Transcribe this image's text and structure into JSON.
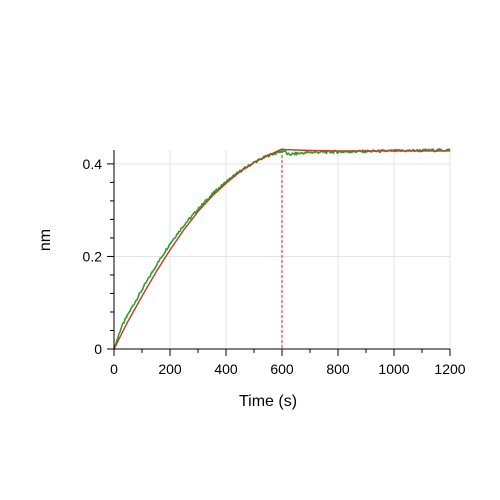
{
  "chart_data": {
    "type": "line",
    "title": "",
    "xlabel": "Time (s)",
    "ylabel": "nm",
    "xlim": [
      0,
      1200
    ],
    "ylim": [
      0,
      0.43
    ],
    "x_ticks": [
      0,
      200,
      400,
      600,
      800,
      1000,
      1200
    ],
    "x_tick_labels": [
      "0",
      "200",
      "400",
      "600",
      "800",
      "1000",
      "1200"
    ],
    "y_ticks": [
      0,
      0.2,
      0.4
    ],
    "y_tick_labels": [
      "0",
      "0.2",
      "0.4"
    ],
    "grid": true,
    "vertical_markers": [
      {
        "x": 0,
        "color": "#d62728",
        "style": "dashed"
      },
      {
        "x": 600,
        "color": "#d62728",
        "style": "dashed"
      }
    ],
    "series": [
      {
        "color": "#2ca02c",
        "style": "noisy",
        "x": [
          0,
          25,
          50,
          100,
          150,
          200,
          250,
          300,
          350,
          400,
          450,
          500,
          550,
          600,
          610,
          620,
          650,
          700,
          800,
          900,
          1000,
          1100,
          1200
        ],
        "y": [
          0.0,
          0.045,
          0.075,
          0.128,
          0.18,
          0.228,
          0.268,
          0.302,
          0.334,
          0.361,
          0.384,
          0.403,
          0.418,
          0.428,
          0.428,
          0.42,
          0.422,
          0.425,
          0.426,
          0.427,
          0.428,
          0.429,
          0.43
        ]
      },
      {
        "color": "#c0392b",
        "style": "smooth",
        "x": [
          0,
          25,
          50,
          100,
          150,
          200,
          250,
          300,
          350,
          400,
          450,
          500,
          550,
          600,
          610,
          650,
          700,
          800,
          900,
          1000,
          1100,
          1200
        ],
        "y": [
          0.0,
          0.03,
          0.06,
          0.114,
          0.166,
          0.214,
          0.258,
          0.297,
          0.33,
          0.358,
          0.383,
          0.403,
          0.418,
          0.432,
          0.431,
          0.43,
          0.429,
          0.428,
          0.428,
          0.428,
          0.428,
          0.428
        ]
      }
    ]
  }
}
